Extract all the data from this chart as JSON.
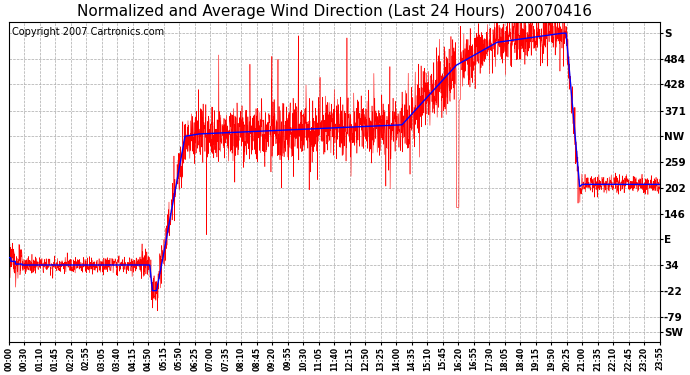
{
  "title": "Normalized and Average Wind Direction (Last 24 Hours)  20070416",
  "copyright": "Copyright 2007 Cartronics.com",
  "background_color": "#ffffff",
  "plot_background": "#ffffff",
  "grid_color": "#aaaaaa",
  "red_color": "#ff0000",
  "blue_color": "#0000ff",
  "ytick_labels": [
    "SW",
    "-79",
    "-22",
    "34",
    "E",
    "146",
    "202",
    "259",
    "NW",
    "371",
    "428",
    "484",
    "S"
  ],
  "ytick_values": [
    -112,
    -79,
    -22,
    34,
    90,
    146,
    202,
    259,
    315,
    371,
    428,
    484,
    540
  ],
  "ylim": [
    -135,
    565
  ],
  "xtick_labels": [
    "00:00",
    "00:30",
    "01:10",
    "01:45",
    "02:20",
    "02:55",
    "03:05",
    "03:40",
    "04:15",
    "04:50",
    "05:15",
    "05:50",
    "06:25",
    "07:00",
    "07:35",
    "08:10",
    "08:45",
    "09:20",
    "09:55",
    "10:30",
    "11:05",
    "11:40",
    "12:15",
    "12:50",
    "13:25",
    "14:00",
    "14:35",
    "15:10",
    "15:45",
    "16:20",
    "16:55",
    "17:30",
    "18:05",
    "18:40",
    "19:15",
    "19:50",
    "20:25",
    "21:00",
    "21:35",
    "22:10",
    "22:45",
    "23:20",
    "23:55"
  ],
  "title_fontsize": 11,
  "copyright_fontsize": 7,
  "figsize": [
    6.9,
    3.75
  ],
  "dpi": 100
}
